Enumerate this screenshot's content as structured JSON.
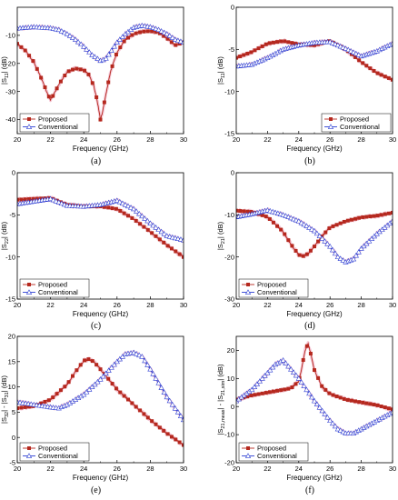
{
  "colors": {
    "proposed": "#b5281e",
    "conventional": "#2d3fd3",
    "noise": "#f2b6c8"
  },
  "chart_data": [
    {
      "type": "line",
      "panel_label": "(a)",
      "xlabel": "Frequency (GHz)",
      "ylabel": "|S11| (dB)",
      "ylabel_main": "|S",
      "ylabel_sub": "11",
      "ylabel_tail": "| (dB)",
      "xlim": [
        20,
        30
      ],
      "ylim": [
        -45,
        0
      ],
      "xticks": [
        20,
        22,
        24,
        26,
        28,
        30
      ],
      "yticks": [
        -10,
        -20,
        -30,
        -40
      ],
      "legend": "lower-left",
      "series": [
        {
          "name": "Proposed",
          "marker": "square",
          "x": [
            20,
            20.5,
            21,
            21.5,
            21.8,
            22,
            22.2,
            22.5,
            23,
            23.5,
            24,
            24.3,
            24.6,
            24.8,
            25,
            25.1,
            25.3,
            25.6,
            26,
            26.5,
            27,
            27.5,
            28,
            28.5,
            29,
            29.5,
            30
          ],
          "y": [
            -13,
            -15.5,
            -19.5,
            -26,
            -30.5,
            -33,
            -31,
            -27.5,
            -23,
            -21.8,
            -22.3,
            -24,
            -28,
            -33,
            -40,
            -38,
            -32,
            -23,
            -16,
            -11.5,
            -9.5,
            -8.7,
            -8.5,
            -9,
            -11,
            -13.5,
            -12.5
          ]
        },
        {
          "name": "Conventional",
          "marker": "triangle",
          "x": [
            20,
            21,
            22,
            22.5,
            23,
            23.5,
            24,
            24.5,
            25,
            25.3,
            25.6,
            26,
            26.5,
            27,
            27.5,
            28,
            28.5,
            29,
            29.5,
            30
          ],
          "y": [
            -7.5,
            -7,
            -7.4,
            -8,
            -9.5,
            -11.5,
            -14,
            -17,
            -19,
            -18.5,
            -16,
            -12.5,
            -9.5,
            -7.2,
            -6.5,
            -7,
            -8,
            -9.5,
            -11.5,
            -12.5
          ]
        }
      ]
    },
    {
      "type": "line",
      "panel_label": "(b)",
      "xlabel": "Frequency (GHz)",
      "ylabel": "|S11| (dB)",
      "ylabel_main": "|S",
      "ylabel_sub": "11",
      "ylabel_tail": "| (dB)",
      "xlim": [
        20,
        30
      ],
      "ylim": [
        -15,
        0
      ],
      "xticks": [
        20,
        22,
        24,
        26,
        28,
        30
      ],
      "yticks": [
        0,
        -5,
        -10,
        -15
      ],
      "legend": "lower-right",
      "series": [
        {
          "name": "Proposed",
          "marker": "square",
          "x": [
            20,
            21,
            22,
            23,
            24,
            25,
            26,
            27,
            28,
            29,
            30
          ],
          "y": [
            -6,
            -5.3,
            -4.3,
            -4,
            -4.4,
            -4.5,
            -4,
            -5,
            -6.5,
            -7.8,
            -8.6
          ]
        },
        {
          "name": "Conventional",
          "marker": "triangle",
          "x": [
            20,
            21,
            22,
            23,
            24,
            25,
            26,
            27,
            28,
            29,
            30
          ],
          "y": [
            -7,
            -6.8,
            -6,
            -5,
            -4.5,
            -4.2,
            -4.1,
            -4.9,
            -5.8,
            -5.2,
            -4.3
          ]
        }
      ]
    },
    {
      "type": "line",
      "panel_label": "(c)",
      "xlabel": "Frequency (GHz)",
      "ylabel": "|S22| (dB)",
      "ylabel_main": "|S",
      "ylabel_sub": "22",
      "ylabel_tail": "| (dB)",
      "xlim": [
        20,
        30
      ],
      "ylim": [
        -15,
        0
      ],
      "xticks": [
        20,
        22,
        24,
        26,
        28,
        30
      ],
      "yticks": [
        0,
        -5,
        -10,
        -15
      ],
      "legend": "lower-left",
      "series": [
        {
          "name": "Proposed",
          "marker": "square",
          "x": [
            20,
            21,
            22,
            23,
            24,
            25,
            26,
            27,
            28,
            29,
            30
          ],
          "y": [
            -3.2,
            -3.1,
            -3,
            -3.8,
            -4,
            -4,
            -4.3,
            -5.5,
            -7,
            -8.6,
            -10
          ]
        },
        {
          "name": "Conventional",
          "marker": "triangle",
          "x": [
            20,
            21,
            22,
            23,
            24,
            25,
            26,
            27,
            28,
            29,
            30
          ],
          "y": [
            -3.7,
            -3.4,
            -3.1,
            -3.9,
            -4,
            -3.8,
            -3.3,
            -4.3,
            -6,
            -7.5,
            -8
          ]
        }
      ]
    },
    {
      "type": "line",
      "panel_label": "(d)",
      "xlabel": "Frequency (GHz)",
      "ylabel": "|S21| (dB)",
      "ylabel_main": "|S",
      "ylabel_sub": "21",
      "ylabel_tail": "| (dB)",
      "xlim": [
        20,
        30
      ],
      "ylim": [
        -30,
        0
      ],
      "xticks": [
        20,
        22,
        24,
        26,
        28,
        30
      ],
      "yticks": [
        0,
        -10,
        -20,
        -30
      ],
      "legend": "lower-left",
      "series": [
        {
          "name": "Proposed",
          "marker": "square",
          "x": [
            20,
            21,
            22,
            23,
            23.5,
            24,
            24.3,
            24.6,
            25,
            25.5,
            26,
            27,
            28,
            29,
            30
          ],
          "y": [
            -9,
            -9.3,
            -10.5,
            -14,
            -17,
            -19.5,
            -19.8,
            -19.2,
            -17.5,
            -15,
            -13,
            -11.5,
            -10.6,
            -10.2,
            -9.5
          ]
        },
        {
          "name": "Conventional",
          "marker": "triangle",
          "x": [
            20,
            21,
            22,
            23,
            24,
            25,
            26,
            26.5,
            27,
            27.5,
            28,
            29,
            30
          ],
          "y": [
            -10.5,
            -9.8,
            -8.9,
            -10,
            -11.5,
            -13.8,
            -17.5,
            -20,
            -21.2,
            -20.5,
            -18,
            -14.5,
            -11.5
          ]
        }
      ]
    },
    {
      "type": "line",
      "panel_label": "(e)",
      "xlabel": "Frequency (GHz)",
      "ylabel": "|S32| - |S31| (dB)",
      "ylabel_main": "|S",
      "ylabel_sub": "32",
      "ylabel_mid": "| - |S",
      "ylabel_sub2": "31",
      "ylabel_tail": "| (dB)",
      "xlim": [
        20,
        30
      ],
      "ylim": [
        -5,
        20
      ],
      "xticks": [
        20,
        22,
        24,
        26,
        28,
        30
      ],
      "yticks": [
        20,
        15,
        10,
        5,
        0,
        -5
      ],
      "legend": "lower-left",
      "series": [
        {
          "name": "Proposed",
          "marker": "square",
          "x": [
            20,
            21,
            22,
            23,
            23.5,
            24,
            24.3,
            24.6,
            25,
            25.5,
            26,
            27,
            28,
            29,
            30
          ],
          "y": [
            5.8,
            6.2,
            7.5,
            10.5,
            13,
            15.2,
            15.5,
            15,
            13.5,
            11.5,
            9.5,
            6.5,
            3.5,
            0.8,
            -1.5
          ]
        },
        {
          "name": "Conventional",
          "marker": "triangle",
          "x": [
            20,
            21,
            22,
            22.5,
            23,
            24,
            25,
            26,
            26.5,
            27,
            27.5,
            28,
            29,
            30
          ],
          "y": [
            7,
            6.5,
            6,
            5.8,
            6.5,
            8.5,
            11.5,
            15,
            16.5,
            16.8,
            16,
            13.5,
            8,
            3.5
          ]
        }
      ]
    },
    {
      "type": "line",
      "panel_label": "(f)",
      "xlabel": "Frequency (GHz)",
      "ylabel": "|S21,meas| - |S21,sim| (dB)",
      "ylabel_main": "|S",
      "ylabel_sub": "21,meas",
      "ylabel_mid": "| - |S",
      "ylabel_sub2": "21,sim",
      "ylabel_tail": "| (dB)",
      "xlim": [
        20,
        30
      ],
      "ylim": [
        -20,
        25
      ],
      "xticks": [
        20,
        22,
        24,
        26,
        28,
        30
      ],
      "yticks": [
        20,
        10,
        0,
        -10,
        -20
      ],
      "legend": "lower-left",
      "series": [
        {
          "name": "Proposed",
          "marker": "square",
          "x": [
            20,
            21,
            22,
            23,
            23.5,
            24,
            24.2,
            24.4,
            24.6,
            24.8,
            25,
            25.5,
            26,
            27,
            28,
            29,
            30
          ],
          "y": [
            2.5,
            4,
            5,
            6,
            6.5,
            9,
            14,
            20,
            22.5,
            18,
            13,
            7,
            4.5,
            2.5,
            1.5,
            0.5,
            -1
          ]
        },
        {
          "name": "Conventional",
          "marker": "triangle",
          "x": [
            20,
            21,
            22,
            22.5,
            23,
            24,
            25,
            26,
            26.5,
            27,
            27.5,
            28,
            29,
            30
          ],
          "y": [
            2,
            6,
            12,
            15,
            16.5,
            10,
            2,
            -5,
            -8,
            -9.5,
            -9.5,
            -8,
            -5,
            -2
          ]
        }
      ]
    }
  ]
}
